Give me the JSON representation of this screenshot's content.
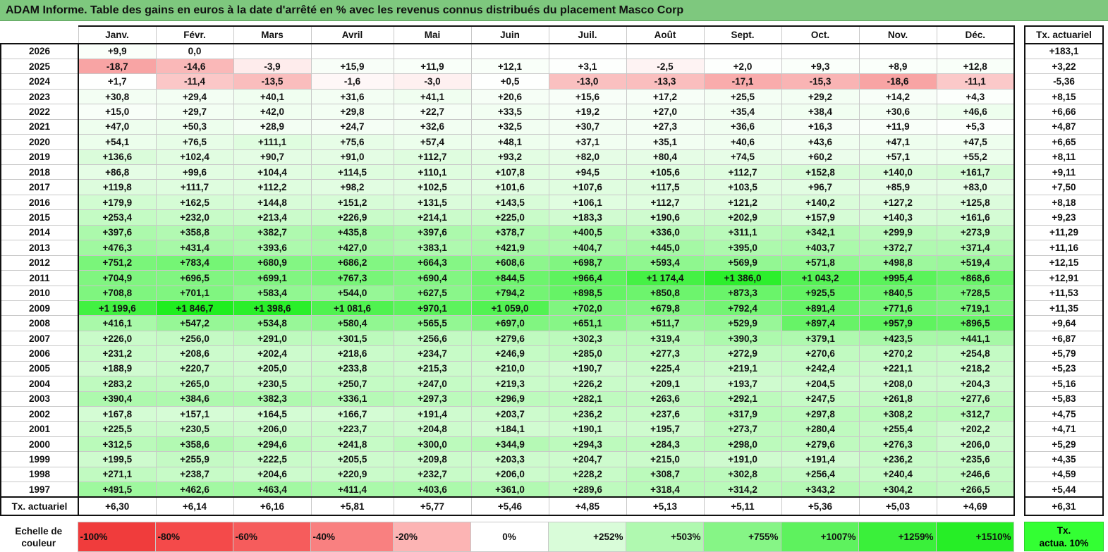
{
  "title": "ADAM Informe. Table des gains en euros à la date d'arrêté en % avec les revenus connus distribués du placement Masco Corp",
  "months": [
    "Janv.",
    "Févr.",
    "Mars",
    "Avril",
    "Mai",
    "Juin",
    "Juil.",
    "Août",
    "Sept.",
    "Oct.",
    "Nov.",
    "Déc."
  ],
  "tx_header": "Tx. actuariel",
  "rows": [
    {
      "year": "2026",
      "values": [
        "+9,9",
        "0,0",
        "",
        "",
        "",
        "",
        "",
        "",
        "",
        "",
        "",
        ""
      ],
      "tx": "+183,1"
    },
    {
      "year": "2025",
      "values": [
        "-18,7",
        "-14,6",
        "-3,9",
        "+15,9",
        "+11,9",
        "+12,1",
        "+3,1",
        "-2,5",
        "+2,0",
        "+9,3",
        "+8,9",
        "+12,8"
      ],
      "tx": "+3,22"
    },
    {
      "year": "2024",
      "values": [
        "+1,7",
        "-11,4",
        "-13,5",
        "-1,6",
        "-3,0",
        "+0,5",
        "-13,0",
        "-13,3",
        "-17,1",
        "-15,3",
        "-18,6",
        "-11,1"
      ],
      "tx": "-5,36"
    },
    {
      "year": "2023",
      "values": [
        "+30,8",
        "+29,4",
        "+40,1",
        "+31,6",
        "+41,1",
        "+20,6",
        "+15,6",
        "+17,2",
        "+25,5",
        "+29,2",
        "+14,2",
        "+4,3"
      ],
      "tx": "+8,15"
    },
    {
      "year": "2022",
      "values": [
        "+15,0",
        "+29,7",
        "+42,0",
        "+29,8",
        "+22,7",
        "+33,5",
        "+19,2",
        "+27,0",
        "+35,4",
        "+38,4",
        "+30,6",
        "+46,6"
      ],
      "tx": "+6,66"
    },
    {
      "year": "2021",
      "values": [
        "+47,0",
        "+50,3",
        "+28,9",
        "+24,7",
        "+32,6",
        "+32,5",
        "+30,7",
        "+27,3",
        "+36,6",
        "+16,3",
        "+11,9",
        "+5,3"
      ],
      "tx": "+4,87"
    },
    {
      "year": "2020",
      "values": [
        "+54,1",
        "+76,5",
        "+111,1",
        "+75,6",
        "+57,4",
        "+48,1",
        "+37,1",
        "+35,1",
        "+40,6",
        "+43,6",
        "+47,1",
        "+47,5"
      ],
      "tx": "+6,65"
    },
    {
      "year": "2019",
      "values": [
        "+136,6",
        "+102,4",
        "+90,7",
        "+91,0",
        "+112,7",
        "+93,2",
        "+82,0",
        "+80,4",
        "+74,5",
        "+60,2",
        "+57,1",
        "+55,2"
      ],
      "tx": "+8,11"
    },
    {
      "year": "2018",
      "values": [
        "+86,8",
        "+99,6",
        "+104,4",
        "+114,5",
        "+110,1",
        "+107,8",
        "+94,5",
        "+105,6",
        "+112,7",
        "+152,8",
        "+140,0",
        "+161,7"
      ],
      "tx": "+9,11"
    },
    {
      "year": "2017",
      "values": [
        "+119,8",
        "+111,7",
        "+112,2",
        "+98,2",
        "+102,5",
        "+101,6",
        "+107,6",
        "+117,5",
        "+103,5",
        "+96,7",
        "+85,9",
        "+83,0"
      ],
      "tx": "+7,50"
    },
    {
      "year": "2016",
      "values": [
        "+179,9",
        "+162,5",
        "+144,8",
        "+151,2",
        "+131,5",
        "+143,5",
        "+106,1",
        "+112,7",
        "+121,2",
        "+140,2",
        "+127,2",
        "+125,8"
      ],
      "tx": "+8,18"
    },
    {
      "year": "2015",
      "values": [
        "+253,4",
        "+232,0",
        "+213,4",
        "+226,9",
        "+214,1",
        "+225,0",
        "+183,3",
        "+190,6",
        "+202,9",
        "+157,9",
        "+140,3",
        "+161,6"
      ],
      "tx": "+9,23"
    },
    {
      "year": "2014",
      "values": [
        "+397,6",
        "+358,8",
        "+382,7",
        "+435,8",
        "+397,6",
        "+378,7",
        "+400,5",
        "+336,0",
        "+311,1",
        "+342,1",
        "+299,9",
        "+273,9"
      ],
      "tx": "+11,29"
    },
    {
      "year": "2013",
      "values": [
        "+476,3",
        "+431,4",
        "+393,6",
        "+427,0",
        "+383,1",
        "+421,9",
        "+404,7",
        "+445,0",
        "+395,0",
        "+403,7",
        "+372,7",
        "+371,4"
      ],
      "tx": "+11,16"
    },
    {
      "year": "2012",
      "values": [
        "+751,2",
        "+783,4",
        "+680,9",
        "+686,2",
        "+664,3",
        "+608,6",
        "+698,7",
        "+593,4",
        "+569,9",
        "+571,8",
        "+498,8",
        "+519,4"
      ],
      "tx": "+12,15"
    },
    {
      "year": "2011",
      "values": [
        "+704,9",
        "+696,5",
        "+699,1",
        "+767,3",
        "+690,4",
        "+844,5",
        "+966,4",
        "+1 174,4",
        "+1 386,0",
        "+1 043,2",
        "+995,4",
        "+868,6"
      ],
      "tx": "+12,91"
    },
    {
      "year": "2010",
      "values": [
        "+708,8",
        "+701,1",
        "+583,4",
        "+544,0",
        "+627,5",
        "+794,2",
        "+898,5",
        "+850,8",
        "+873,3",
        "+925,5",
        "+840,5",
        "+728,5"
      ],
      "tx": "+11,53"
    },
    {
      "year": "2009",
      "values": [
        "+1 199,6",
        "+1 846,7",
        "+1 398,6",
        "+1 081,6",
        "+970,1",
        "+1 059,0",
        "+702,0",
        "+679,8",
        "+792,4",
        "+891,4",
        "+771,6",
        "+719,1"
      ],
      "tx": "+11,35"
    },
    {
      "year": "2008",
      "values": [
        "+416,1",
        "+547,2",
        "+534,8",
        "+580,4",
        "+565,5",
        "+697,0",
        "+651,1",
        "+511,7",
        "+529,9",
        "+897,4",
        "+957,9",
        "+896,5"
      ],
      "tx": "+9,64"
    },
    {
      "year": "2007",
      "values": [
        "+226,0",
        "+256,0",
        "+291,0",
        "+301,5",
        "+256,6",
        "+279,6",
        "+302,3",
        "+319,4",
        "+390,3",
        "+379,1",
        "+423,5",
        "+441,1"
      ],
      "tx": "+6,87"
    },
    {
      "year": "2006",
      "values": [
        "+231,2",
        "+208,6",
        "+202,4",
        "+218,6",
        "+234,7",
        "+246,9",
        "+285,0",
        "+277,3",
        "+272,9",
        "+270,6",
        "+270,2",
        "+254,8"
      ],
      "tx": "+5,79"
    },
    {
      "year": "2005",
      "values": [
        "+188,9",
        "+220,7",
        "+205,0",
        "+233,8",
        "+215,3",
        "+210,0",
        "+190,7",
        "+225,4",
        "+219,1",
        "+242,4",
        "+221,1",
        "+218,2"
      ],
      "tx": "+5,23"
    },
    {
      "year": "2004",
      "values": [
        "+283,2",
        "+265,0",
        "+230,5",
        "+250,7",
        "+247,0",
        "+219,3",
        "+226,2",
        "+209,1",
        "+193,7",
        "+204,5",
        "+208,0",
        "+204,3"
      ],
      "tx": "+5,16"
    },
    {
      "year": "2003",
      "values": [
        "+390,4",
        "+384,6",
        "+382,3",
        "+336,1",
        "+297,3",
        "+296,9",
        "+282,1",
        "+263,6",
        "+292,1",
        "+247,5",
        "+261,8",
        "+277,6"
      ],
      "tx": "+5,83"
    },
    {
      "year": "2002",
      "values": [
        "+167,8",
        "+157,1",
        "+164,5",
        "+166,7",
        "+191,4",
        "+203,7",
        "+236,2",
        "+237,6",
        "+317,9",
        "+297,8",
        "+308,2",
        "+312,7"
      ],
      "tx": "+4,75"
    },
    {
      "year": "2001",
      "values": [
        "+225,5",
        "+230,5",
        "+206,0",
        "+223,7",
        "+204,8",
        "+184,1",
        "+190,1",
        "+195,7",
        "+273,7",
        "+280,4",
        "+255,4",
        "+202,2"
      ],
      "tx": "+4,71"
    },
    {
      "year": "2000",
      "values": [
        "+312,5",
        "+358,6",
        "+294,6",
        "+241,8",
        "+300,0",
        "+344,9",
        "+294,3",
        "+284,3",
        "+298,0",
        "+279,6",
        "+276,3",
        "+206,0"
      ],
      "tx": "+5,29"
    },
    {
      "year": "1999",
      "values": [
        "+199,5",
        "+255,9",
        "+222,5",
        "+205,5",
        "+209,8",
        "+203,3",
        "+204,7",
        "+215,0",
        "+191,0",
        "+191,4",
        "+236,2",
        "+235,6"
      ],
      "tx": "+4,35"
    },
    {
      "year": "1998",
      "values": [
        "+271,1",
        "+238,7",
        "+204,6",
        "+220,9",
        "+232,7",
        "+206,0",
        "+228,2",
        "+308,7",
        "+302,8",
        "+256,4",
        "+240,4",
        "+246,6"
      ],
      "tx": "+4,59"
    },
    {
      "year": "1997",
      "values": [
        "+491,5",
        "+462,6",
        "+463,4",
        "+411,4",
        "+403,6",
        "+361,0",
        "+289,6",
        "+318,4",
        "+314,2",
        "+343,2",
        "+304,2",
        "+266,5"
      ],
      "tx": "+5,44"
    }
  ],
  "footer": {
    "label": "Tx. actuariel",
    "values": [
      "+6,30",
      "+6,14",
      "+6,16",
      "+5,81",
      "+5,77",
      "+5,46",
      "+4,85",
      "+5,13",
      "+5,11",
      "+5,36",
      "+5,03",
      "+4,69"
    ],
    "tx": "+6,31"
  },
  "scale": {
    "label_line1": "Echelle de",
    "label_line2": "couleur",
    "items": [
      {
        "text": "-100%",
        "color": "#f03c3c",
        "align": "left"
      },
      {
        "text": "-80%",
        "color": "#f44a4a",
        "align": "left"
      },
      {
        "text": "-60%",
        "color": "#f65c5c",
        "align": "left"
      },
      {
        "text": "-40%",
        "color": "#f98080",
        "align": "left"
      },
      {
        "text": "-20%",
        "color": "#fcb4b4",
        "align": "left"
      },
      {
        "text": "0%",
        "color": "#ffffff",
        "align": "center"
      },
      {
        "text": "+252%",
        "color": "#d9fcd9",
        "align": "right"
      },
      {
        "text": "+503%",
        "color": "#b0f9b0",
        "align": "right"
      },
      {
        "text": "+755%",
        "color": "#86f586",
        "align": "right"
      },
      {
        "text": "+1007%",
        "color": "#5ef25e",
        "align": "right"
      },
      {
        "text": "+1259%",
        "color": "#3af03a",
        "align": "right"
      },
      {
        "text": "+1510%",
        "color": "#26ee26",
        "align": "right"
      }
    ],
    "legend_line1": "Tx.",
    "legend_line2": "actua. 10%",
    "legend_color": "#33ff33"
  },
  "colors": {
    "title_bg": "#7ec87e",
    "negative_max": "#f03c3c",
    "positive_max": "#1fee1f"
  }
}
